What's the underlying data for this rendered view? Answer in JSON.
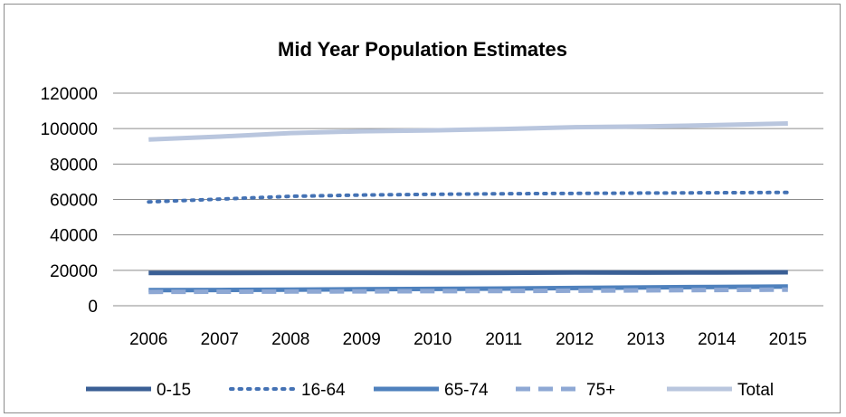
{
  "chart_data": {
    "type": "line",
    "title": "Mid Year Population Estimates",
    "xlabel": "",
    "ylabel": "",
    "ylim": [
      0,
      120000
    ],
    "yticks": [
      0,
      20000,
      40000,
      60000,
      80000,
      100000,
      120000
    ],
    "grid": true,
    "legend_position": "bottom",
    "categories": [
      "2006",
      "2007",
      "2008",
      "2009",
      "2010",
      "2011",
      "2012",
      "2013",
      "2014",
      "2015"
    ],
    "series": [
      {
        "name": "0-15",
        "values": [
          18500,
          18500,
          18600,
          18600,
          18500,
          18600,
          18800,
          18700,
          18800,
          18900
        ],
        "color": "#3a5f95",
        "style": "solid"
      },
      {
        "name": "16-64",
        "values": [
          58600,
          60200,
          61800,
          62500,
          62900,
          63200,
          63400,
          63600,
          63800,
          64000
        ],
        "color": "#4472b4",
        "style": "dotted"
      },
      {
        "name": "65-74",
        "values": [
          8800,
          8900,
          9100,
          9300,
          9500,
          9700,
          10000,
          10300,
          10600,
          10900
        ],
        "color": "#4f81bd",
        "style": "solid"
      },
      {
        "name": "75+",
        "values": [
          7800,
          7900,
          8000,
          8100,
          8200,
          8300,
          8500,
          8700,
          8900,
          9100
        ],
        "color": "#8ea8d4",
        "style": "dashed"
      },
      {
        "name": "Total",
        "values": [
          93800,
          95500,
          97500,
          98500,
          99000,
          99800,
          100800,
          101200,
          102000,
          102900
        ],
        "color": "#b9c6de",
        "style": "solid"
      }
    ]
  }
}
